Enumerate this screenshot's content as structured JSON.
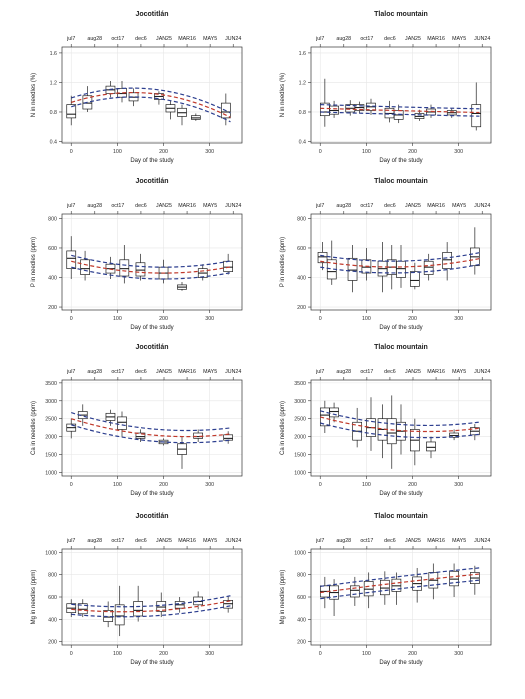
{
  "figure": {
    "x_axis_label": "Day of the study",
    "top_date_labels": [
      "jul7",
      "aug28",
      "oct17",
      "dec6",
      "JAN25",
      "MAR16",
      "MAY5",
      "JUN24"
    ],
    "top_date_days": [
      0,
      51,
      101,
      151,
      201,
      251,
      301,
      351
    ],
    "colors": {
      "fit_red": "#c0392b",
      "band_blue": "#2c3e8f",
      "box": "#222222",
      "grid": "#e6e6e6",
      "frame": "#333333"
    }
  },
  "chart_data": [
    {
      "type": "box",
      "title": "Jocotitlán",
      "xlabel": "Day of the study",
      "ylabel": "N in needles (%)",
      "xlim": [
        -20,
        370
      ],
      "ylim": [
        0.38,
        1.68
      ],
      "xticks": [
        0,
        100,
        200,
        300
      ],
      "yticks": [
        0.4,
        0.8,
        1.2,
        1.6
      ],
      "ytick_labels": [
        "0.4",
        "0.8",
        "1.2",
        "1.6"
      ],
      "boxes": [
        {
          "x": 0,
          "lo": 0.62,
          "q1": 0.72,
          "med": 0.77,
          "q3": 0.9,
          "hi": 1.02
        },
        {
          "x": 35,
          "lo": 0.8,
          "q1": 0.84,
          "med": 0.92,
          "q3": 1.02,
          "hi": 1.15
        },
        {
          "x": 85,
          "lo": 1.0,
          "q1": 1.05,
          "med": 1.1,
          "q3": 1.15,
          "hi": 1.22
        },
        {
          "x": 110,
          "lo": 0.93,
          "q1": 1.0,
          "med": 1.05,
          "q3": 1.12,
          "hi": 1.22
        },
        {
          "x": 135,
          "lo": 0.88,
          "q1": 0.95,
          "med": 1.0,
          "q3": 1.06,
          "hi": 1.12
        },
        {
          "x": 190,
          "lo": 0.9,
          "q1": 0.97,
          "med": 1.01,
          "q3": 1.05,
          "hi": 1.08
        },
        {
          "x": 215,
          "lo": 0.7,
          "q1": 0.8,
          "med": 0.85,
          "q3": 0.9,
          "hi": 0.95
        },
        {
          "x": 240,
          "lo": 0.62,
          "q1": 0.74,
          "med": 0.79,
          "q3": 0.85,
          "hi": 0.9
        },
        {
          "x": 270,
          "lo": 0.68,
          "q1": 0.7,
          "med": 0.72,
          "q3": 0.75,
          "hi": 0.78
        },
        {
          "x": 335,
          "lo": 0.62,
          "q1": 0.72,
          "med": 0.8,
          "q3": 0.92,
          "hi": 1.05
        }
      ],
      "fit": {
        "c0": 0.93,
        "c1": 0.002,
        "c2": -7.5e-06
      },
      "band": 0.06
    },
    {
      "type": "box",
      "title": "Tlaloc mountain",
      "xlabel": "Day of the study",
      "ylabel": "N in needles (%)",
      "xlim": [
        -20,
        370
      ],
      "ylim": [
        0.38,
        1.68
      ],
      "xticks": [
        0,
        100,
        200,
        300
      ],
      "yticks": [
        0.4,
        0.8,
        1.2,
        1.6
      ],
      "ytick_labels": [
        "0.4",
        "0.8",
        "1.2",
        "1.6"
      ],
      "boxes": [
        {
          "x": 10,
          "lo": 0.6,
          "q1": 0.75,
          "med": 0.8,
          "q3": 0.92,
          "hi": 1.25
        },
        {
          "x": 30,
          "lo": 0.72,
          "q1": 0.77,
          "med": 0.82,
          "q3": 0.88,
          "hi": 0.95
        },
        {
          "x": 65,
          "lo": 0.75,
          "q1": 0.8,
          "med": 0.85,
          "q3": 0.9,
          "hi": 0.96
        },
        {
          "x": 85,
          "lo": 0.78,
          "q1": 0.82,
          "med": 0.86,
          "q3": 0.9,
          "hi": 0.94
        },
        {
          "x": 110,
          "lo": 0.76,
          "q1": 0.82,
          "med": 0.87,
          "q3": 0.92,
          "hi": 0.98
        },
        {
          "x": 150,
          "lo": 0.66,
          "q1": 0.72,
          "med": 0.78,
          "q3": 0.85,
          "hi": 0.95
        },
        {
          "x": 170,
          "lo": 0.65,
          "q1": 0.7,
          "med": 0.76,
          "q3": 0.82,
          "hi": 0.9
        },
        {
          "x": 215,
          "lo": 0.68,
          "q1": 0.71,
          "med": 0.74,
          "q3": 0.78,
          "hi": 0.83
        },
        {
          "x": 240,
          "lo": 0.72,
          "q1": 0.76,
          "med": 0.8,
          "q3": 0.84,
          "hi": 0.9
        },
        {
          "x": 285,
          "lo": 0.72,
          "q1": 0.76,
          "med": 0.79,
          "q3": 0.82,
          "hi": 0.85
        },
        {
          "x": 338,
          "lo": 0.55,
          "q1": 0.6,
          "med": 0.78,
          "q3": 0.9,
          "hi": 1.2
        }
      ],
      "fit": {
        "c0": 0.85,
        "c1": -0.0002,
        "c2": 1e-07
      },
      "band": 0.05
    },
    {
      "type": "box",
      "title": "Jocotitlán",
      "xlabel": "Day of the study",
      "ylabel": "P in needles (ppm)",
      "xlim": [
        -20,
        370
      ],
      "ylim": [
        180,
        830
      ],
      "xticks": [
        0,
        100,
        200,
        300
      ],
      "yticks": [
        200,
        400,
        600,
        800
      ],
      "ytick_labels": [
        "200",
        "400",
        "600",
        "800"
      ],
      "boxes": [
        {
          "x": 0,
          "lo": 390,
          "q1": 460,
          "med": 530,
          "q3": 580,
          "hi": 680
        },
        {
          "x": 30,
          "lo": 380,
          "q1": 420,
          "med": 460,
          "q3": 520,
          "hi": 580
        },
        {
          "x": 85,
          "lo": 390,
          "q1": 430,
          "med": 460,
          "q3": 490,
          "hi": 540
        },
        {
          "x": 115,
          "lo": 360,
          "q1": 410,
          "med": 460,
          "q3": 520,
          "hi": 620
        },
        {
          "x": 150,
          "lo": 380,
          "q1": 410,
          "med": 450,
          "q3": 500,
          "hi": 560
        },
        {
          "x": 200,
          "lo": 360,
          "q1": 390,
          "med": 430,
          "q3": 470,
          "hi": 520
        },
        {
          "x": 240,
          "lo": 310,
          "q1": 320,
          "med": 335,
          "q3": 350,
          "hi": 370
        },
        {
          "x": 285,
          "lo": 380,
          "q1": 400,
          "med": 430,
          "q3": 460,
          "hi": 490
        },
        {
          "x": 340,
          "lo": 420,
          "q1": 440,
          "med": 470,
          "q3": 510,
          "hi": 560
        }
      ],
      "fit": {
        "c0": 510,
        "c1": -0.8,
        "c2": 0.002
      },
      "band": 40
    },
    {
      "type": "box",
      "title": "Tlaloc mountain",
      "xlabel": "Day of the study",
      "ylabel": "P in needles (ppm)",
      "xlim": [
        -20,
        370
      ],
      "ylim": [
        180,
        830
      ],
      "xticks": [
        0,
        100,
        200,
        300
      ],
      "yticks": [
        200,
        400,
        600,
        800
      ],
      "ytick_labels": [
        "200",
        "400",
        "600",
        "800"
      ],
      "boxes": [
        {
          "x": 5,
          "lo": 450,
          "q1": 500,
          "med": 540,
          "q3": 570,
          "hi": 640
        },
        {
          "x": 25,
          "lo": 350,
          "q1": 390,
          "med": 440,
          "q3": 520,
          "hi": 650
        },
        {
          "x": 70,
          "lo": 300,
          "q1": 380,
          "med": 450,
          "q3": 530,
          "hi": 620
        },
        {
          "x": 100,
          "lo": 380,
          "q1": 430,
          "med": 470,
          "q3": 520,
          "hi": 600
        },
        {
          "x": 135,
          "lo": 300,
          "q1": 410,
          "med": 460,
          "q3": 510,
          "hi": 640
        },
        {
          "x": 155,
          "lo": 320,
          "q1": 420,
          "med": 470,
          "q3": 520,
          "hi": 620
        },
        {
          "x": 175,
          "lo": 330,
          "q1": 400,
          "med": 460,
          "q3": 510,
          "hi": 620
        },
        {
          "x": 205,
          "lo": 320,
          "q1": 340,
          "med": 380,
          "q3": 440,
          "hi": 500
        },
        {
          "x": 235,
          "lo": 380,
          "q1": 420,
          "med": 470,
          "q3": 510,
          "hi": 560
        },
        {
          "x": 275,
          "lo": 380,
          "q1": 460,
          "med": 520,
          "q3": 570,
          "hi": 640
        },
        {
          "x": 335,
          "lo": 420,
          "q1": 480,
          "med": 540,
          "q3": 600,
          "hi": 740
        }
      ],
      "fit": {
        "c0": 510,
        "c1": -0.5,
        "c2": 0.0016
      },
      "band": 40
    },
    {
      "type": "box",
      "title": "Jocotitlán",
      "xlabel": "Day of the study",
      "ylabel": "Ca in needles (ppm)",
      "xlim": [
        -20,
        370
      ],
      "ylim": [
        900,
        3580
      ],
      "xticks": [
        0,
        100,
        200,
        300
      ],
      "yticks": [
        1000,
        1500,
        2000,
        2500,
        3000,
        3500
      ],
      "ytick_labels": [
        "1000",
        "1500",
        "2000",
        "2500",
        "3000",
        "3500"
      ],
      "boxes": [
        {
          "x": 0,
          "lo": 1950,
          "q1": 2150,
          "med": 2250,
          "q3": 2350,
          "hi": 2500
        },
        {
          "x": 25,
          "lo": 2300,
          "q1": 2500,
          "med": 2600,
          "q3": 2700,
          "hi": 2900
        },
        {
          "x": 85,
          "lo": 2300,
          "q1": 2450,
          "med": 2550,
          "q3": 2650,
          "hi": 2750
        },
        {
          "x": 110,
          "lo": 2000,
          "q1": 2200,
          "med": 2400,
          "q3": 2550,
          "hi": 2700
        },
        {
          "x": 150,
          "lo": 1850,
          "q1": 1950,
          "med": 2000,
          "q3": 2100,
          "hi": 2200
        },
        {
          "x": 200,
          "lo": 1750,
          "q1": 1800,
          "med": 1850,
          "q3": 1900,
          "hi": 1950
        },
        {
          "x": 240,
          "lo": 1100,
          "q1": 1500,
          "med": 1650,
          "q3": 1800,
          "hi": 2000
        },
        {
          "x": 275,
          "lo": 1850,
          "q1": 1950,
          "med": 2000,
          "q3": 2100,
          "hi": 2200
        },
        {
          "x": 340,
          "lo": 1800,
          "q1": 1900,
          "med": 1950,
          "q3": 2050,
          "hi": 2150
        }
      ],
      "fit": {
        "c0": 2500,
        "c1": -4.0,
        "c2": 0.008
      },
      "band": 170
    },
    {
      "type": "box",
      "title": "Tlaloc mountain",
      "xlabel": "Day of the study",
      "ylabel": "Ca in needles (ppm)",
      "xlim": [
        -20,
        370
      ],
      "ylim": [
        900,
        3580
      ],
      "xticks": [
        0,
        100,
        200,
        300
      ],
      "yticks": [
        1000,
        1500,
        2000,
        2500,
        3000,
        3500
      ],
      "ytick_labels": [
        "1000",
        "1500",
        "2000",
        "2500",
        "3000",
        "3500"
      ],
      "boxes": [
        {
          "x": 10,
          "lo": 2100,
          "q1": 2300,
          "med": 2600,
          "q3": 2800,
          "hi": 3000
        },
        {
          "x": 30,
          "lo": 2400,
          "q1": 2550,
          "med": 2700,
          "q3": 2800,
          "hi": 2950
        },
        {
          "x": 80,
          "lo": 1700,
          "q1": 1900,
          "med": 2150,
          "q3": 2400,
          "hi": 2800
        },
        {
          "x": 110,
          "lo": 1600,
          "q1": 2000,
          "med": 2250,
          "q3": 2500,
          "hi": 3100
        },
        {
          "x": 135,
          "lo": 1400,
          "q1": 1900,
          "med": 2200,
          "q3": 2500,
          "hi": 2900
        },
        {
          "x": 155,
          "lo": 1100,
          "q1": 1800,
          "med": 2100,
          "q3": 2500,
          "hi": 3150
        },
        {
          "x": 175,
          "lo": 1500,
          "q1": 1900,
          "med": 2150,
          "q3": 2400,
          "hi": 2900
        },
        {
          "x": 205,
          "lo": 1200,
          "q1": 1600,
          "med": 1900,
          "q3": 2200,
          "hi": 2500
        },
        {
          "x": 240,
          "lo": 1400,
          "q1": 1600,
          "med": 1700,
          "q3": 1850,
          "hi": 2000
        },
        {
          "x": 290,
          "lo": 1900,
          "q1": 1980,
          "med": 2030,
          "q3": 2100,
          "hi": 2200
        },
        {
          "x": 335,
          "lo": 1900,
          "q1": 2050,
          "med": 2150,
          "q3": 2250,
          "hi": 2350
        }
      ],
      "fit": {
        "c0": 2550,
        "c1": -3.5,
        "c2": 0.0075
      },
      "band": 170
    },
    {
      "type": "box",
      "title": "Jocotitlán",
      "xlabel": "Day of the study",
      "ylabel": "Mg in needles (ppm)",
      "xlim": [
        -20,
        370
      ],
      "ylim": [
        170,
        1030
      ],
      "xticks": [
        0,
        100,
        200,
        300
      ],
      "yticks": [
        200,
        400,
        600,
        800,
        1000
      ],
      "ytick_labels": [
        "200",
        "400",
        "600",
        "800",
        "1000"
      ],
      "boxes": [
        {
          "x": 0,
          "lo": 420,
          "q1": 460,
          "med": 500,
          "q3": 540,
          "hi": 580
        },
        {
          "x": 25,
          "lo": 420,
          "q1": 450,
          "med": 490,
          "q3": 540,
          "hi": 580
        },
        {
          "x": 80,
          "lo": 330,
          "q1": 380,
          "med": 420,
          "q3": 480,
          "hi": 560
        },
        {
          "x": 105,
          "lo": 250,
          "q1": 350,
          "med": 430,
          "q3": 530,
          "hi": 700
        },
        {
          "x": 145,
          "lo": 380,
          "q1": 430,
          "med": 480,
          "q3": 560,
          "hi": 700
        },
        {
          "x": 195,
          "lo": 420,
          "q1": 470,
          "med": 510,
          "q3": 560,
          "hi": 640
        },
        {
          "x": 235,
          "lo": 460,
          "q1": 500,
          "med": 530,
          "q3": 560,
          "hi": 600
        },
        {
          "x": 275,
          "lo": 490,
          "q1": 530,
          "med": 560,
          "q3": 600,
          "hi": 650
        },
        {
          "x": 340,
          "lo": 460,
          "q1": 500,
          "med": 540,
          "q3": 570,
          "hi": 610
        }
      ],
      "fit": {
        "c0": 490,
        "c1": -0.4,
        "c2": 0.0018
      },
      "band": 45
    },
    {
      "type": "box",
      "title": "Tlaloc mountain",
      "xlabel": "Day of the study",
      "ylabel": "Mg in needles (ppm)",
      "xlim": [
        -20,
        370
      ],
      "ylim": [
        170,
        1030
      ],
      "xticks": [
        0,
        100,
        200,
        300
      ],
      "yticks": [
        200,
        400,
        600,
        800,
        1000
      ],
      "ytick_labels": [
        "200",
        "400",
        "600",
        "800",
        "1000"
      ],
      "boxes": [
        {
          "x": 10,
          "lo": 500,
          "q1": 600,
          "med": 650,
          "q3": 700,
          "hi": 780
        },
        {
          "x": 30,
          "lo": 430,
          "q1": 580,
          "med": 640,
          "q3": 700,
          "hi": 760
        },
        {
          "x": 75,
          "lo": 520,
          "q1": 600,
          "med": 660,
          "q3": 700,
          "hi": 780
        },
        {
          "x": 105,
          "lo": 500,
          "q1": 610,
          "med": 670,
          "q3": 740,
          "hi": 820
        },
        {
          "x": 140,
          "lo": 530,
          "q1": 620,
          "med": 680,
          "q3": 750,
          "hi": 830
        },
        {
          "x": 165,
          "lo": 530,
          "q1": 650,
          "med": 700,
          "q3": 760,
          "hi": 820
        },
        {
          "x": 210,
          "lo": 550,
          "q1": 660,
          "med": 720,
          "q3": 780,
          "hi": 860
        },
        {
          "x": 245,
          "lo": 580,
          "q1": 680,
          "med": 750,
          "q3": 820,
          "hi": 900
        },
        {
          "x": 290,
          "lo": 600,
          "q1": 700,
          "med": 760,
          "q3": 830,
          "hi": 900
        },
        {
          "x": 335,
          "lo": 620,
          "q1": 720,
          "med": 770,
          "q3": 820,
          "hi": 880
        }
      ],
      "fit": {
        "c0": 640,
        "c1": 0.55,
        "c2": -0.0002
      },
      "band": 55
    }
  ]
}
